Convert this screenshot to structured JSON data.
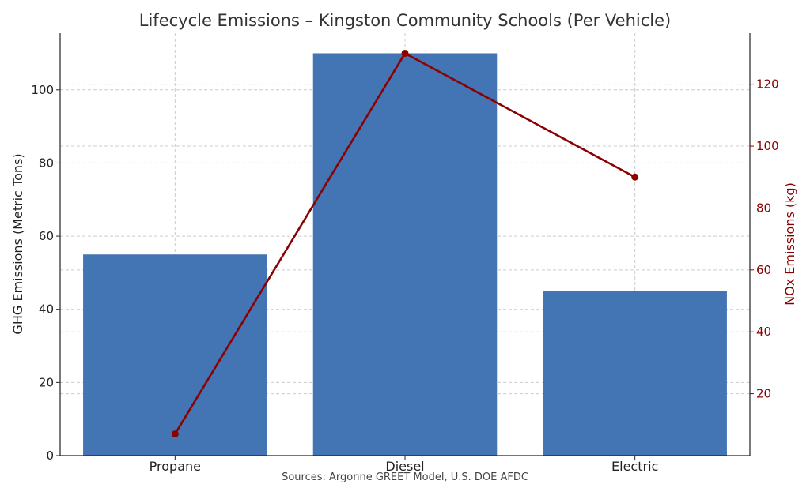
{
  "chart_data": {
    "type": "bar",
    "title": "Lifecycle Emissions – Kingston Community Schools (Per Vehicle)",
    "categories": [
      "Propane",
      "Diesel",
      "Electric"
    ],
    "series": [
      {
        "values": [
          55,
          110,
          45
        ],
        "axis": "left",
        "kind": "bar",
        "color": "#4374b3"
      },
      {
        "values": [
          7,
          130,
          90
        ],
        "axis": "right",
        "kind": "line",
        "color": "#8b0000"
      }
    ],
    "ylabel": "GHG Emissions (Metric Tons)",
    "ylabel_right": "NOx Emissions (kg)",
    "ylim": [
      0,
      115.5
    ],
    "ylim_right": [
      0,
      136.5
    ],
    "yticks": [
      0,
      20,
      40,
      60,
      80,
      100
    ],
    "yticks_right": [
      20,
      40,
      60,
      80,
      100,
      120
    ],
    "grid": true,
    "source": "Sources: Argonne GREET Model, U.S. DOE AFDC"
  },
  "colors": {
    "bar": "#4374b3",
    "line": "#8b0000",
    "axis": "#222222"
  }
}
